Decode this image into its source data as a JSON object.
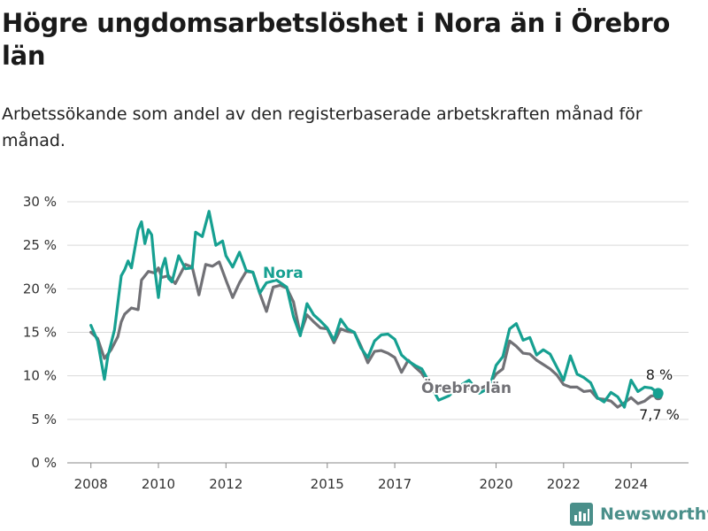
{
  "header": {
    "title": "Högre ungdomsarbetslöshet i Nora än i Örebro län",
    "subtitle": "Arbetssökande som andel av den registerbaserade arbetskraften månad för månad."
  },
  "brand": {
    "name": "Newsworthy",
    "icon": "newsworthy-chart-icon"
  },
  "colors": {
    "nora": "#16a091",
    "orebro": "#717176",
    "grid": "#d9d9d9"
  },
  "chart_data": {
    "type": "line",
    "title": "Högre ungdomsarbetslöshet i Nora än i Örebro län",
    "ylim": [
      0,
      30
    ],
    "y_ticks": [
      0,
      5,
      10,
      15,
      20,
      25,
      30
    ],
    "y_tick_labels": [
      "0 %",
      "5 %",
      "10 %",
      "15 %",
      "20 %",
      "25 %",
      "30 %"
    ],
    "x_ticks": [
      2008,
      2010,
      2012,
      2015,
      2017,
      2020,
      2022,
      2024
    ],
    "x_tick_labels": [
      "2008",
      "2010",
      "2012",
      "2015",
      "2017",
      "2020",
      "2022",
      "2024"
    ],
    "grid": "horizontal",
    "annotations": {
      "nora_end": "8 %",
      "orebro_end": "7,7 %"
    },
    "series": [
      {
        "name": "Nora",
        "key": "nora",
        "x": [
          2008.0,
          2008.2,
          2008.4,
          2008.5,
          2008.7,
          2008.9,
          2009.0,
          2009.1,
          2009.2,
          2009.4,
          2009.5,
          2009.6,
          2009.7,
          2009.8,
          2009.9,
          2010.0,
          2010.1,
          2010.2,
          2010.3,
          2010.4,
          2010.6,
          2010.8,
          2011.0,
          2011.1,
          2011.3,
          2011.5,
          2011.7,
          2011.9,
          2012.0,
          2012.2,
          2012.4,
          2012.6,
          2012.8,
          2013.0,
          2013.2,
          2013.5,
          2013.8,
          2014.0,
          2014.2,
          2014.4,
          2014.6,
          2014.8,
          2015.0,
          2015.2,
          2015.4,
          2015.6,
          2015.8,
          2016.0,
          2016.2,
          2016.4,
          2016.6,
          2016.8,
          2017.0,
          2017.2,
          2017.4,
          2017.6,
          2017.8,
          2018.0,
          2018.3,
          2018.6,
          2018.9,
          2019.2,
          2019.5,
          2019.8,
          2020.0,
          2020.2,
          2020.4,
          2020.6,
          2020.8,
          2021.0,
          2021.2,
          2021.4,
          2021.6,
          2021.8,
          2022.0,
          2022.2,
          2022.4,
          2022.6,
          2022.8,
          2023.0,
          2023.2,
          2023.4,
          2023.6,
          2023.8,
          2024.0,
          2024.2,
          2024.4,
          2024.6,
          2024.8
        ],
        "values": [
          15.8,
          14.0,
          9.6,
          12.2,
          15.3,
          21.5,
          22.2,
          23.2,
          22.4,
          26.8,
          27.7,
          25.2,
          26.8,
          26.2,
          22.0,
          19.0,
          22.3,
          23.5,
          21.2,
          20.8,
          23.8,
          22.3,
          22.4,
          26.5,
          26.0,
          28.9,
          25.0,
          25.5,
          23.8,
          22.5,
          24.2,
          22.1,
          21.9,
          19.5,
          20.7,
          21.0,
          20.2,
          16.8,
          14.6,
          18.3,
          17.0,
          16.3,
          15.5,
          14.1,
          16.5,
          15.4,
          15.0,
          13.2,
          12.1,
          14.0,
          14.7,
          14.8,
          14.2,
          12.4,
          11.7,
          11.2,
          10.8,
          9.4,
          7.2,
          7.7,
          8.8,
          9.5,
          8.0,
          8.6,
          11.2,
          12.2,
          15.4,
          16.0,
          14.1,
          14.4,
          12.4,
          13.0,
          12.5,
          11.0,
          9.5,
          12.3,
          10.2,
          9.8,
          9.2,
          7.5,
          7.0,
          8.1,
          7.6,
          6.4,
          9.5,
          8.2,
          8.7,
          8.6,
          8.0
        ]
      },
      {
        "name": "Örebro län",
        "key": "orebro",
        "x": [
          2008.0,
          2008.2,
          2008.4,
          2008.6,
          2008.8,
          2008.9,
          2009.0,
          2009.2,
          2009.4,
          2009.5,
          2009.7,
          2009.9,
          2010.0,
          2010.1,
          2010.3,
          2010.5,
          2010.8,
          2011.0,
          2011.2,
          2011.4,
          2011.6,
          2011.8,
          2012.0,
          2012.2,
          2012.4,
          2012.6,
          2012.8,
          2013.0,
          2013.2,
          2013.4,
          2013.6,
          2013.8,
          2014.0,
          2014.2,
          2014.4,
          2014.6,
          2014.8,
          2015.0,
          2015.2,
          2015.4,
          2015.6,
          2015.8,
          2016.0,
          2016.2,
          2016.4,
          2016.6,
          2016.8,
          2017.0,
          2017.2,
          2017.4,
          2017.6,
          2017.8,
          2018.0,
          2018.3,
          2018.6,
          2018.9,
          2019.2,
          2019.5,
          2019.8,
          2020.0,
          2020.2,
          2020.4,
          2020.6,
          2020.8,
          2021.0,
          2021.2,
          2021.4,
          2021.6,
          2021.8,
          2022.0,
          2022.2,
          2022.4,
          2022.6,
          2022.8,
          2023.0,
          2023.2,
          2023.4,
          2023.6,
          2023.8,
          2024.0,
          2024.2,
          2024.4,
          2024.6,
          2024.8
        ],
        "values": [
          15.0,
          14.3,
          12.0,
          13.0,
          14.5,
          16.2,
          17.1,
          17.8,
          17.6,
          21.0,
          22.0,
          21.8,
          22.4,
          21.3,
          21.5,
          20.6,
          22.8,
          22.5,
          19.3,
          22.8,
          22.6,
          23.1,
          21.0,
          19.0,
          20.7,
          22.0,
          21.9,
          19.5,
          17.4,
          20.2,
          20.4,
          20.1,
          18.5,
          14.8,
          17.0,
          16.2,
          15.5,
          15.4,
          13.8,
          15.4,
          15.1,
          15.0,
          13.4,
          11.5,
          12.8,
          12.9,
          12.6,
          12.1,
          10.4,
          11.8,
          11.0,
          10.3,
          9.1,
          8.6,
          8.0,
          8.1,
          8.6,
          8.5,
          9.0,
          10.2,
          10.8,
          14.0,
          13.4,
          12.6,
          12.5,
          11.8,
          11.3,
          10.8,
          10.1,
          9.0,
          8.7,
          8.7,
          8.2,
          8.3,
          7.4,
          7.3,
          7.1,
          6.4,
          6.9,
          7.5,
          6.8,
          7.1,
          7.7,
          7.7
        ]
      }
    ]
  }
}
